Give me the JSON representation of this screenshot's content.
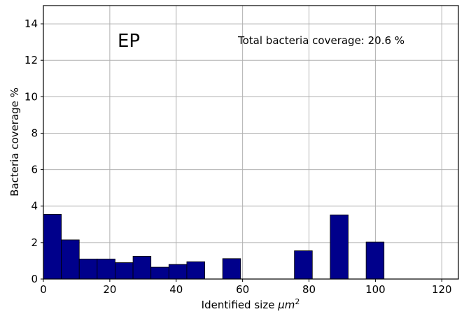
{
  "chart_data": {
    "type": "bar",
    "xlabel": "Identified size μm²",
    "ylabel": "Bacteria coverage %",
    "xlim": [
      0,
      125
    ],
    "ylim": [
      0,
      15
    ],
    "xticks": [
      0,
      20,
      40,
      60,
      80,
      100,
      120
    ],
    "yticks": [
      0,
      2,
      4,
      6,
      8,
      10,
      12,
      14
    ],
    "grid": true,
    "bar_color": "#00008b",
    "bin_width": 5.4,
    "bins": [
      {
        "start": 0.0,
        "value": 3.55
      },
      {
        "start": 5.4,
        "value": 2.15
      },
      {
        "start": 10.8,
        "value": 1.1
      },
      {
        "start": 16.2,
        "value": 1.1
      },
      {
        "start": 21.6,
        "value": 0.9
      },
      {
        "start": 27.0,
        "value": 1.25
      },
      {
        "start": 32.4,
        "value": 0.65
      },
      {
        "start": 37.8,
        "value": 0.8
      },
      {
        "start": 43.2,
        "value": 0.95
      },
      {
        "start": 54.0,
        "value": 1.12
      },
      {
        "start": 75.6,
        "value": 1.55
      },
      {
        "start": 86.4,
        "value": 3.52
      },
      {
        "start": 97.2,
        "value": 2.03
      }
    ],
    "annotations": {
      "label": "EP",
      "coverage_text": "Total bacteria coverage: 20.6 %"
    }
  }
}
